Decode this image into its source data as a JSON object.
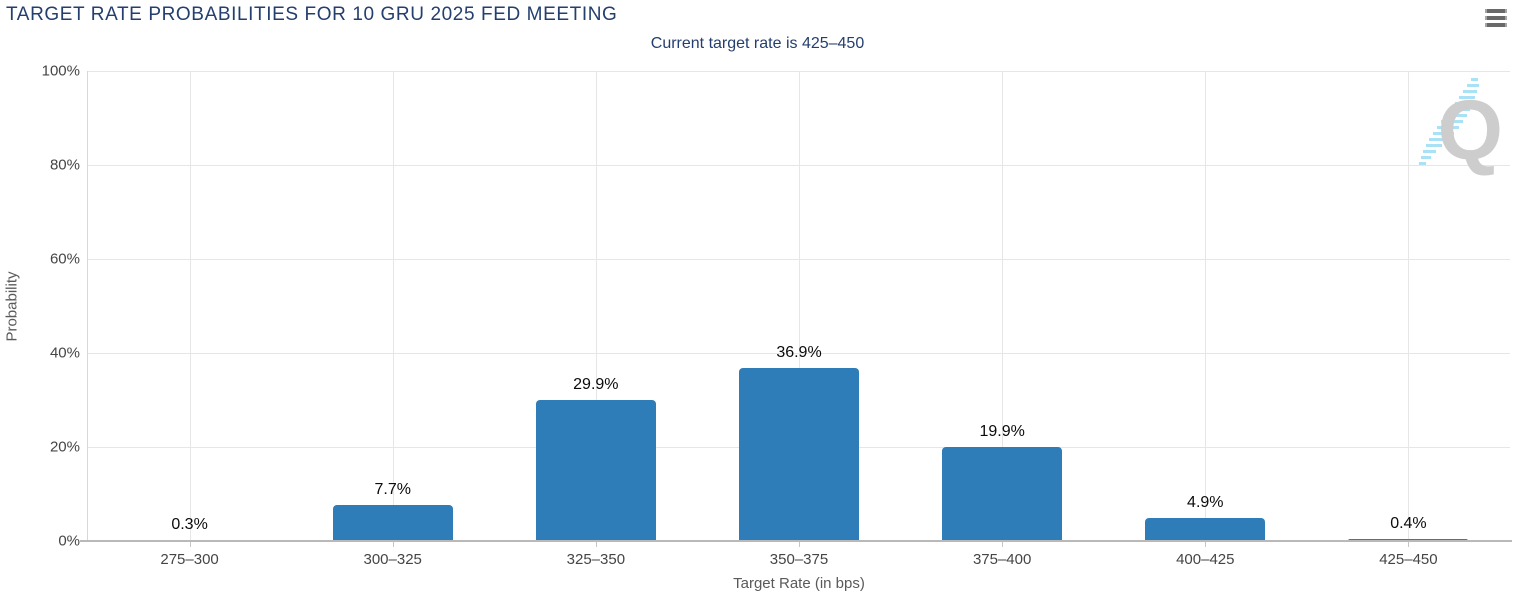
{
  "header": {
    "title": "TARGET RATE PROBABILITIES FOR 10 GRU 2025 FED MEETING",
    "subtitle": "Current target rate is 425–450",
    "menu_icon": "hamburger-icon"
  },
  "watermark": {
    "letter": "Q",
    "icon": "q-logo-watermark"
  },
  "colors": {
    "title": "#243e6e",
    "bar": "#2e7db8",
    "gridline": "#e6e6e6",
    "axis_line": "#b9b9b9",
    "tick_text": "#454545",
    "data_label": "#0b0b0b",
    "watermark_gray": "#cdcdcd",
    "watermark_cyan": "#a9e2f7"
  },
  "chart_data": {
    "type": "bar",
    "title": "TARGET RATE PROBABILITIES FOR 10 GRU 2025 FED MEETING",
    "subtitle": "Current target rate is 425–450",
    "categories": [
      "275–300",
      "300–325",
      "325–350",
      "350–375",
      "375–400",
      "400–425",
      "425–450"
    ],
    "values": [
      0.3,
      7.7,
      29.9,
      36.9,
      19.9,
      4.9,
      0.4
    ],
    "value_labels": [
      "0.3%",
      "7.7%",
      "29.9%",
      "36.9%",
      "19.9%",
      "4.9%",
      "0.4%"
    ],
    "xlabel": "Target Rate (in bps)",
    "ylabel": "Probability",
    "ylim": [
      0,
      100
    ],
    "yticks": [
      0,
      20,
      40,
      60,
      80,
      100
    ],
    "ytick_labels": [
      "0%",
      "20%",
      "40%",
      "60%",
      "80%",
      "100%"
    ],
    "grid": true,
    "legend": "none",
    "bar_color": "#2e7db8"
  }
}
